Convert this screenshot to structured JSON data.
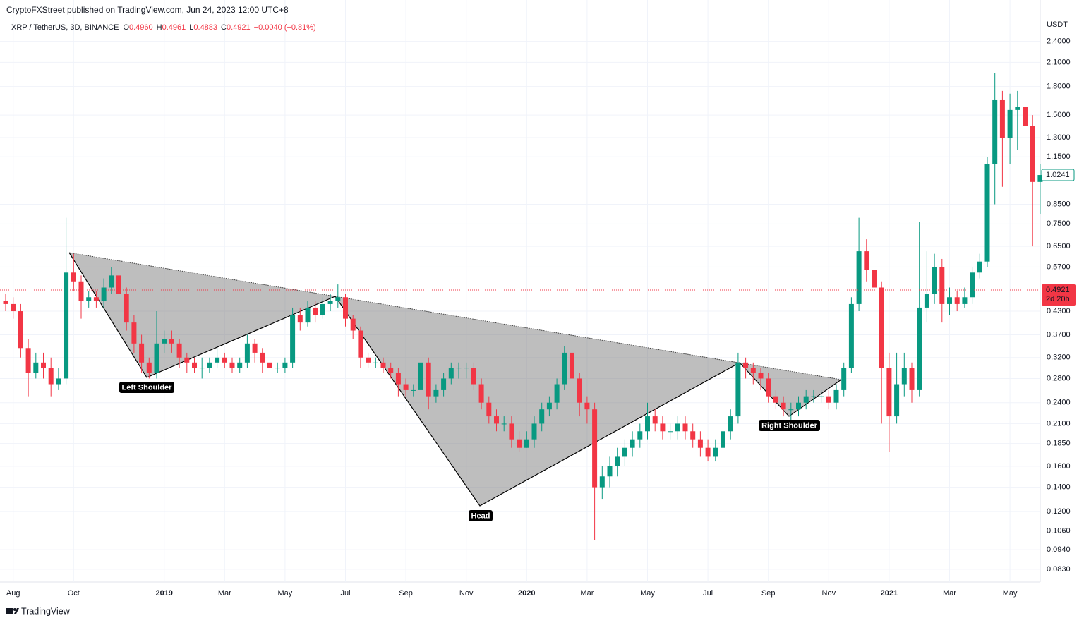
{
  "chart_data": {
    "type": "candlestick",
    "subtitle": "CryptoFXStreet published on TradingView.com, Jun 24, 2023 12:00 UTC+8",
    "title": "XRP / TetherUS, 3D, BINANCE",
    "ohlc_legend": [
      {
        "label": "O",
        "value": "0.4960"
      },
      {
        "label": "H",
        "value": "0.4961"
      },
      {
        "label": "L",
        "value": "0.4883"
      },
      {
        "label": "C",
        "value": "0.4921"
      }
    ],
    "change": "−0.0040 (−0.81%)",
    "y_unit": "USDT",
    "brand": "TradingView",
    "log_scale": true,
    "grid": true,
    "up_color": "#089981",
    "down_color": "#f23645",
    "ylim": [
      0.0765,
      2.83
    ],
    "yticks": [
      {
        "value": 2.4,
        "label": "2.4000"
      },
      {
        "value": 2.1,
        "label": "2.1000"
      },
      {
        "value": 1.8,
        "label": "1.8000"
      },
      {
        "value": 1.5,
        "label": "1.5000"
      },
      {
        "value": 1.3,
        "label": "1.3000"
      },
      {
        "value": 1.15,
        "label": "1.1500"
      },
      {
        "value": 0.85,
        "label": "0.8500"
      },
      {
        "value": 0.75,
        "label": "0.7500"
      },
      {
        "value": 0.65,
        "label": "0.6500"
      },
      {
        "value": 0.57,
        "label": "0.5700"
      },
      {
        "value": 0.43,
        "label": "0.4300"
      },
      {
        "value": 0.37,
        "label": "0.3700"
      },
      {
        "value": 0.32,
        "label": "0.3200"
      },
      {
        "value": 0.28,
        "label": "0.2800"
      },
      {
        "value": 0.24,
        "label": "0.2400"
      },
      {
        "value": 0.21,
        "label": "0.2100"
      },
      {
        "value": 0.185,
        "label": "0.1850"
      },
      {
        "value": 0.16,
        "label": "0.1600"
      },
      {
        "value": 0.14,
        "label": "0.1400"
      },
      {
        "value": 0.12,
        "label": "0.1200"
      },
      {
        "value": 0.106,
        "label": "0.1060"
      },
      {
        "value": 0.094,
        "label": "0.0940"
      },
      {
        "value": 0.083,
        "label": "0.0830"
      }
    ],
    "price_lines": [
      {
        "value": 1.0241,
        "label": "1.0241",
        "color": "#089981",
        "dotted": false
      },
      {
        "value": 0.4921,
        "label": "0.4921",
        "sublabel": "2d 20h",
        "color": "#f23645",
        "dotted": true
      }
    ],
    "annotations": [
      "Left Shoulder",
      "Head",
      "Right Shoulder"
    ],
    "categories": [
      null,
      "Aug",
      null,
      null,
      null,
      null,
      null,
      null,
      null,
      "Oct",
      null,
      null,
      null,
      null,
      null,
      null,
      null,
      null,
      null,
      null,
      null,
      "2019",
      null,
      null,
      null,
      null,
      null,
      null,
      null,
      "Mar",
      null,
      null,
      null,
      null,
      null,
      null,
      null,
      "May",
      null,
      null,
      null,
      null,
      null,
      null,
      null,
      "Jul",
      null,
      null,
      null,
      null,
      null,
      null,
      null,
      "Sep",
      null,
      null,
      null,
      null,
      null,
      null,
      null,
      "Nov",
      null,
      null,
      null,
      null,
      null,
      null,
      null,
      "2020",
      null,
      null,
      null,
      null,
      null,
      null,
      null,
      "Mar",
      null,
      null,
      null,
      null,
      null,
      null,
      null,
      "May",
      null,
      null,
      null,
      null,
      null,
      null,
      null,
      "Jul",
      null,
      null,
      null,
      null,
      null,
      null,
      null,
      "Sep",
      null,
      null,
      null,
      null,
      null,
      null,
      null,
      "Nov",
      null,
      null,
      null,
      null,
      null,
      null,
      null,
      "2021",
      null,
      null,
      null,
      null,
      null,
      null,
      null,
      "Mar",
      null,
      null,
      null,
      null,
      null,
      null,
      null,
      "May",
      null,
      null,
      null,
      null
    ],
    "open": [
      0.46,
      0.45,
      0.43,
      0.34,
      0.29,
      0.31,
      0.3,
      0.27,
      0.28,
      0.55,
      0.52,
      0.46,
      0.47,
      0.46,
      0.5,
      0.54,
      0.48,
      0.4,
      0.35,
      0.31,
      0.29,
      0.35,
      0.36,
      0.35,
      0.32,
      0.31,
      0.3,
      0.3,
      0.31,
      0.32,
      0.31,
      0.3,
      0.31,
      0.35,
      0.33,
      0.31,
      0.3,
      0.3,
      0.31,
      0.42,
      0.4,
      0.44,
      0.42,
      0.45,
      0.46,
      0.47,
      0.41,
      0.38,
      0.32,
      0.31,
      0.31,
      0.3,
      0.29,
      0.27,
      0.26,
      0.26,
      0.31,
      0.25,
      0.26,
      0.28,
      0.3,
      0.3,
      0.3,
      0.27,
      0.24,
      0.22,
      0.21,
      0.21,
      0.19,
      0.18,
      0.19,
      0.21,
      0.23,
      0.24,
      0.27,
      0.33,
      0.28,
      0.24,
      0.23,
      0.14,
      0.15,
      0.16,
      0.17,
      0.18,
      0.19,
      0.2,
      0.22,
      0.21,
      0.2,
      0.2,
      0.21,
      0.2,
      0.19,
      0.18,
      0.17,
      0.18,
      0.2,
      0.22,
      0.31,
      0.3,
      0.29,
      0.28,
      0.25,
      0.24,
      0.23,
      0.23,
      0.24,
      0.25,
      0.25,
      0.25,
      0.24,
      0.26,
      0.3,
      0.45,
      0.63,
      0.56,
      0.5,
      0.3,
      0.22,
      0.27,
      0.3,
      0.26,
      0.44,
      0.48,
      0.57,
      0.45,
      0.47,
      0.45,
      0.47,
      0.55,
      0.59,
      1.1,
      1.65,
      1.3,
      1.55,
      1.58,
      1.4,
      0.98
    ],
    "high": [
      0.48,
      0.47,
      0.45,
      0.36,
      0.33,
      0.33,
      0.32,
      0.3,
      0.78,
      0.62,
      0.54,
      0.49,
      0.49,
      0.53,
      0.57,
      0.56,
      0.5,
      0.42,
      0.37,
      0.32,
      0.43,
      0.38,
      0.38,
      0.36,
      0.33,
      0.32,
      0.32,
      0.32,
      0.34,
      0.33,
      0.32,
      0.32,
      0.37,
      0.36,
      0.34,
      0.32,
      0.31,
      0.32,
      0.44,
      0.44,
      0.46,
      0.46,
      0.47,
      0.48,
      0.51,
      0.48,
      0.42,
      0.39,
      0.33,
      0.32,
      0.32,
      0.31,
      0.3,
      0.28,
      0.27,
      0.32,
      0.32,
      0.27,
      0.29,
      0.31,
      0.31,
      0.31,
      0.31,
      0.28,
      0.25,
      0.23,
      0.22,
      0.22,
      0.2,
      0.2,
      0.22,
      0.24,
      0.25,
      0.28,
      0.345,
      0.34,
      0.29,
      0.25,
      0.24,
      0.16,
      0.17,
      0.18,
      0.19,
      0.2,
      0.21,
      0.24,
      0.23,
      0.22,
      0.21,
      0.22,
      0.22,
      0.21,
      0.2,
      0.19,
      0.19,
      0.21,
      0.23,
      0.33,
      0.32,
      0.31,
      0.3,
      0.29,
      0.26,
      0.25,
      0.24,
      0.25,
      0.26,
      0.26,
      0.26,
      0.26,
      0.27,
      0.31,
      0.47,
      0.78,
      0.68,
      0.65,
      0.52,
      0.33,
      0.33,
      0.33,
      0.31,
      0.76,
      0.63,
      0.62,
      0.6,
      0.5,
      0.49,
      0.5,
      0.57,
      0.62,
      1.15,
      1.96,
      1.75,
      1.72,
      1.75,
      1.7,
      1.5,
      1.1
    ],
    "low": [
      0.43,
      0.41,
      0.32,
      0.25,
      0.28,
      0.28,
      0.25,
      0.26,
      0.27,
      0.49,
      0.41,
      0.44,
      0.44,
      0.44,
      0.48,
      0.46,
      0.38,
      0.33,
      0.29,
      0.28,
      0.28,
      0.33,
      0.33,
      0.3,
      0.29,
      0.29,
      0.28,
      0.29,
      0.3,
      0.3,
      0.29,
      0.29,
      0.3,
      0.31,
      0.29,
      0.29,
      0.29,
      0.29,
      0.3,
      0.38,
      0.39,
      0.4,
      0.41,
      0.43,
      0.44,
      0.39,
      0.36,
      0.3,
      0.3,
      0.3,
      0.29,
      0.28,
      0.25,
      0.25,
      0.25,
      0.25,
      0.23,
      0.24,
      0.25,
      0.27,
      0.28,
      0.28,
      0.26,
      0.23,
      0.21,
      0.2,
      0.2,
      0.18,
      0.175,
      0.18,
      0.18,
      0.2,
      0.22,
      0.23,
      0.26,
      0.27,
      0.22,
      0.21,
      0.1,
      0.13,
      0.14,
      0.15,
      0.16,
      0.17,
      0.18,
      0.19,
      0.2,
      0.19,
      0.19,
      0.19,
      0.19,
      0.18,
      0.17,
      0.165,
      0.165,
      0.17,
      0.19,
      0.21,
      0.28,
      0.27,
      0.26,
      0.24,
      0.23,
      0.22,
      0.215,
      0.22,
      0.23,
      0.24,
      0.24,
      0.23,
      0.23,
      0.25,
      0.29,
      0.43,
      0.52,
      0.45,
      0.21,
      0.175,
      0.21,
      0.25,
      0.24,
      0.25,
      0.4,
      0.45,
      0.4,
      0.42,
      0.43,
      0.44,
      0.45,
      0.53,
      0.57,
      0.85,
      0.95,
      1.1,
      1.2,
      1.25,
      0.65,
      0.8
    ],
    "close": [
      0.45,
      0.43,
      0.34,
      0.29,
      0.31,
      0.3,
      0.27,
      0.28,
      0.55,
      0.52,
      0.46,
      0.47,
      0.46,
      0.5,
      0.54,
      0.48,
      0.4,
      0.35,
      0.31,
      0.29,
      0.35,
      0.36,
      0.35,
      0.32,
      0.31,
      0.3,
      0.3,
      0.31,
      0.32,
      0.31,
      0.3,
      0.31,
      0.35,
      0.33,
      0.31,
      0.3,
      0.3,
      0.31,
      0.42,
      0.4,
      0.44,
      0.42,
      0.45,
      0.46,
      0.47,
      0.41,
      0.38,
      0.32,
      0.31,
      0.31,
      0.3,
      0.29,
      0.27,
      0.26,
      0.26,
      0.31,
      0.25,
      0.26,
      0.28,
      0.3,
      0.3,
      0.3,
      0.27,
      0.24,
      0.22,
      0.21,
      0.21,
      0.19,
      0.18,
      0.19,
      0.21,
      0.23,
      0.24,
      0.27,
      0.33,
      0.28,
      0.24,
      0.23,
      0.14,
      0.15,
      0.16,
      0.17,
      0.18,
      0.19,
      0.2,
      0.22,
      0.21,
      0.2,
      0.2,
      0.21,
      0.2,
      0.19,
      0.18,
      0.17,
      0.18,
      0.2,
      0.22,
      0.31,
      0.3,
      0.29,
      0.28,
      0.25,
      0.24,
      0.23,
      0.23,
      0.24,
      0.25,
      0.25,
      0.25,
      0.24,
      0.26,
      0.3,
      0.45,
      0.63,
      0.56,
      0.5,
      0.3,
      0.22,
      0.27,
      0.3,
      0.26,
      0.44,
      0.48,
      0.57,
      0.45,
      0.47,
      0.45,
      0.47,
      0.55,
      0.59,
      1.1,
      1.65,
      1.3,
      1.55,
      1.58,
      1.4,
      0.98,
      1.0241
    ]
  }
}
